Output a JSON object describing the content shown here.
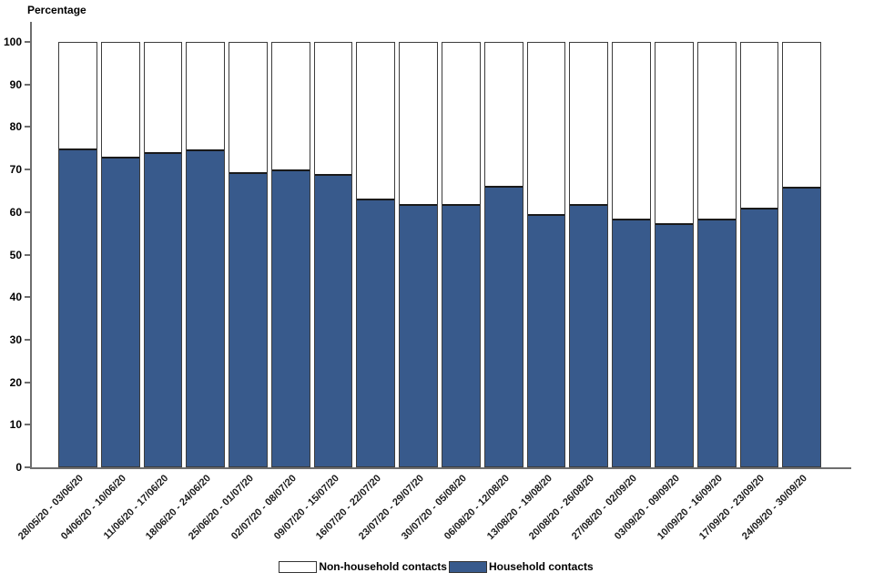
{
  "title": "Percentage",
  "chart_data": {
    "type": "bar",
    "stacked": true,
    "percent_stacked": true,
    "title": "",
    "ylabel": "Percentage",
    "xlabel": "",
    "ylim": [
      0,
      100
    ],
    "yticks": [
      0,
      10,
      20,
      30,
      40,
      50,
      60,
      70,
      80,
      90,
      100
    ],
    "grid": false,
    "legend_position": "bottom",
    "categories": [
      "28/05/20 - 03/06/20",
      "04/06/20 - 10/06/20",
      "11/06/20 - 17/06/20",
      "18/06/20 - 24/06/20",
      "25/06/20 - 01/07/20",
      "02/07/20 - 08/07/20",
      "09/07/20 - 15/07/20",
      "16/07/20 - 22/07/20",
      "23/07/20 - 29/07/20",
      "30/07/20 - 05/08/20",
      "06/08/20 - 12/08/20",
      "13/08/20 - 19/08/20",
      "20/08/20 - 26/08/20",
      "27/08/20 - 02/09/20",
      "03/09/20 - 09/09/20",
      "10/09/20 - 16/09/20",
      "17/09/20 - 23/09/20",
      "24/09/20 - 30/09/20"
    ],
    "series": [
      {
        "name": "Household contacts",
        "color": "#385A8C",
        "values": [
          75.0,
          73.1,
          74.2,
          74.8,
          69.4,
          70.2,
          69.0,
          63.3,
          61.9,
          62.0,
          66.3,
          59.5,
          62.0,
          58.5,
          57.4,
          58.5,
          61.0,
          66.1
        ]
      },
      {
        "name": "Non-household contacts",
        "color": "#FFFFFF",
        "values": [
          25.0,
          26.9,
          25.8,
          25.2,
          30.6,
          29.8,
          31.0,
          36.7,
          38.1,
          38.0,
          33.7,
          40.5,
          38.0,
          41.5,
          42.6,
          41.5,
          39.0,
          33.9
        ]
      }
    ]
  },
  "legend": {
    "items": [
      {
        "label": "Non-household contacts",
        "color": "#FFFFFF"
      },
      {
        "label": "Household contacts",
        "color": "#385A8C"
      }
    ]
  },
  "colors": {
    "axis": "#6e6e6e",
    "bar_border": "#3c3c3c",
    "household": "#385A8C",
    "non_household": "#FFFFFF"
  }
}
